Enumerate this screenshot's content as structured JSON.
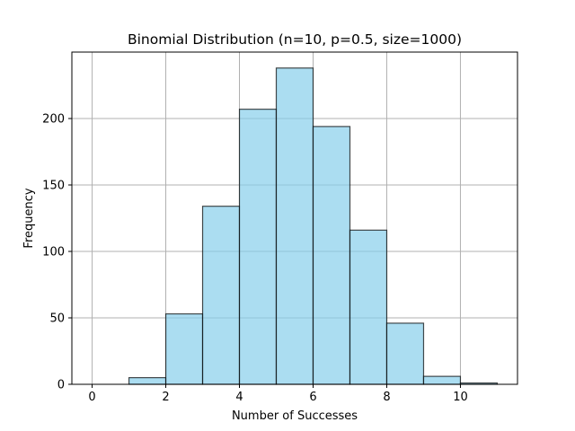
{
  "chart_data": {
    "type": "bar",
    "title": "Binomial Distribution (n=10, p=0.5, size=1000)",
    "xlabel": "Number of Successes",
    "ylabel": "Frequency",
    "bin_edges": [
      0,
      1,
      2,
      3,
      4,
      5,
      6,
      7,
      8,
      9,
      10,
      11
    ],
    "values": [
      0,
      5,
      53,
      134,
      207,
      238,
      194,
      116,
      46,
      6,
      1
    ],
    "xlim": [
      -0.55,
      11.55
    ],
    "ylim": [
      0,
      250
    ],
    "xticks": [
      0,
      2,
      4,
      6,
      8,
      10
    ],
    "yticks": [
      0,
      50,
      100,
      150,
      200
    ],
    "grid": true,
    "bar_color": "#87CEEB",
    "edge_color": "#000000",
    "grid_color": "#b0b0b0"
  }
}
